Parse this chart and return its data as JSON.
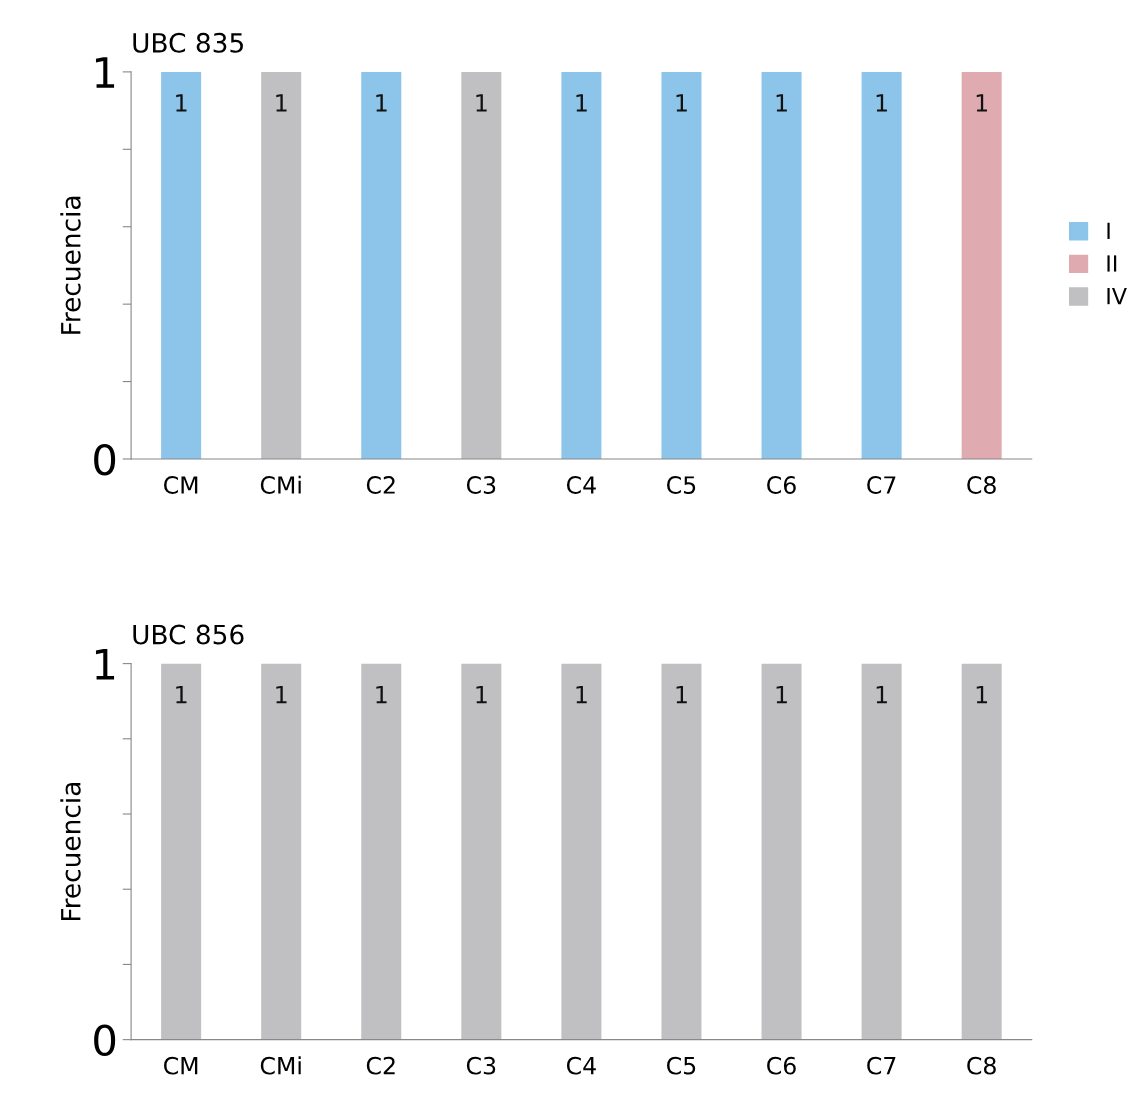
{
  "chart_data": [
    {
      "type": "bar",
      "title": "UBC 835",
      "ylabel": "Frecuencia",
      "stacked": true,
      "legend": "right",
      "grid": false,
      "categories": [
        "CM",
        "CMi",
        "C2",
        "C3",
        "C4",
        "C5",
        "C6",
        "C7",
        "C8"
      ],
      "series": [
        {
          "name": "I",
          "color": "#8cc4ea",
          "values": [
            1,
            null,
            1,
            null,
            1,
            1,
            1,
            1,
            null
          ],
          "value_labels": [
            "1",
            null,
            "1",
            null,
            "1",
            "1",
            "1",
            "1",
            null
          ]
        },
        {
          "name": "II",
          "color": "#e0abb0",
          "values": [
            null,
            null,
            null,
            null,
            null,
            null,
            null,
            null,
            1
          ],
          "value_labels": [
            null,
            null,
            null,
            null,
            null,
            null,
            null,
            null,
            "1"
          ]
        },
        {
          "name": "IV",
          "color": "#c0c0c2",
          "values": [
            null,
            1,
            null,
            1,
            null,
            null,
            null,
            null,
            null
          ],
          "value_labels": [
            null,
            "1",
            null,
            "1",
            null,
            null,
            null,
            null,
            null
          ]
        }
      ],
      "ylim": [
        0,
        1
      ],
      "yticks": [
        0,
        {
          "value": 0.2,
          "label": null
        },
        {
          "value": 0.4,
          "label": null
        },
        {
          "value": 0.6,
          "label": null
        },
        {
          "value": 0.8,
          "label": null
        },
        1
      ]
    },
    {
      "type": "bar",
      "title": "UBC 856",
      "ylabel": "Frecuencia",
      "grid": false,
      "categories": [
        "CM",
        "CMi",
        "C2",
        "C3",
        "C4",
        "C5",
        "C6",
        "C7",
        "C8"
      ],
      "color": "#c0c0c2",
      "values": [
        1,
        1,
        1,
        1,
        1,
        1,
        1,
        1,
        1
      ],
      "value_labels": [
        "1",
        "1",
        "1",
        "1",
        "1",
        "1",
        "1",
        "1",
        "1"
      ],
      "ylim": [
        0,
        1
      ],
      "yticks": [
        0,
        {
          "value": 0.2,
          "label": null
        },
        {
          "value": 0.4,
          "label": null
        },
        {
          "value": 0.6,
          "label": null
        },
        {
          "value": 0.8,
          "label": null
        },
        1
      ]
    }
  ]
}
